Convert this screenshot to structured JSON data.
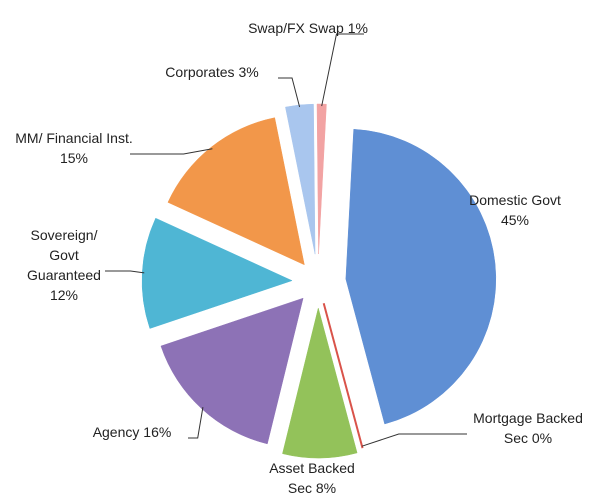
{
  "chart_data": {
    "type": "pie",
    "categories": [
      "Domestic Govt",
      "Mortgage Backed Sec",
      "Asset Backed Sec",
      "Agency",
      "Sovereign/ Govt Guaranteed",
      "MM/ Financial Inst.",
      "Corporates",
      "Swap/FX Swap"
    ],
    "values": [
      45,
      0,
      8,
      16,
      12,
      15,
      3,
      1
    ],
    "value_labels": [
      "45%",
      "0%",
      "8%",
      "16%",
      "12%",
      "15%",
      "3%",
      "1%"
    ],
    "colors": [
      "#5f8fd4",
      "#d9534a",
      "#93c25a",
      "#8d72b6",
      "#4fb6d4",
      "#f2974a",
      "#a9c6ee",
      "#f2a3a3"
    ]
  }
}
